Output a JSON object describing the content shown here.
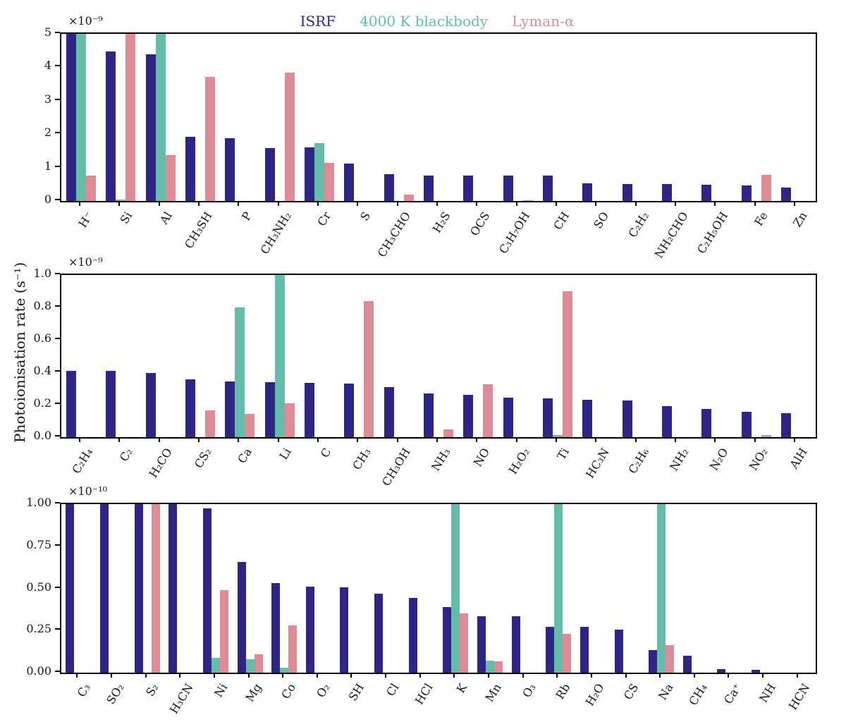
{
  "figure": {
    "ylabel": "Photoionisation rate (s⁻¹)"
  },
  "legend": {
    "items": [
      {
        "label": "ISRF",
        "color": "#2f2585"
      },
      {
        "label": "4000 K blackbody",
        "color": "#65bcab"
      },
      {
        "label": "Lyman-α",
        "color": "#de8b96"
      }
    ]
  },
  "chart_data": [
    {
      "type": "bar",
      "title": "",
      "offset_label": "×10⁻⁹",
      "ylim": [
        0,
        5
      ],
      "ytick_values": [
        0,
        1,
        2,
        3,
        4,
        5
      ],
      "ytick_labels": [
        "0",
        "1",
        "2",
        "3",
        "4",
        "5"
      ],
      "grid": false,
      "categories": [
        "H⁻",
        "Si",
        "Al",
        "CH₃SH",
        "P",
        "CH₃NH₂",
        "Cr",
        "S",
        "CH₃CHO",
        "H₂S",
        "OCS",
        "C₃H₇OH",
        "CH",
        "SO",
        "C₂H₂",
        "NH₂CHO",
        "C₂H₅OH",
        "Fe",
        "Zn"
      ],
      "series": [
        {
          "name": "ISRF",
          "values": [
            5.0,
            4.48,
            4.38,
            1.91,
            1.88,
            1.58,
            1.6,
            1.12,
            0.81,
            0.77,
            0.76,
            0.75,
            0.75,
            0.52,
            0.51,
            0.51,
            0.48,
            0.47,
            0.41
          ]
        },
        {
          "name": "4000 K blackbody",
          "values": [
            5.0,
            0.05,
            5.0,
            0,
            0,
            0,
            1.74,
            0,
            0,
            0,
            0,
            0,
            0,
            0,
            0,
            0,
            0,
            0,
            0
          ]
        },
        {
          "name": "Lyman-α",
          "values": [
            0.75,
            5.0,
            1.37,
            3.72,
            0,
            3.85,
            1.15,
            0,
            0.2,
            0,
            0,
            0.03,
            0,
            0,
            0,
            0,
            0,
            0.78,
            0
          ]
        }
      ],
      "note": "values in units of 1e-9 s^-1; bars at 5.0 are clipped at axis top"
    },
    {
      "type": "bar",
      "title": "",
      "offset_label": "×10⁻⁹",
      "ylim": [
        0,
        1.0
      ],
      "ytick_values": [
        0,
        0.2,
        0.4,
        0.6,
        0.8,
        1.0
      ],
      "ytick_labels": [
        "0.0",
        "0.2",
        "0.4",
        "0.6",
        "0.8",
        "1.0"
      ],
      "grid": false,
      "categories": [
        "C₂H₄",
        "C₂",
        "H₂CO",
        "CS₂",
        "Ca",
        "Li",
        "C",
        "CH₃",
        "CH₃OH",
        "NH₃",
        "NO",
        "H₂O₂",
        "Ti",
        "HC₃N",
        "C₂H₆",
        "NH₂",
        "N₂O",
        "NO₂",
        "AlH"
      ],
      "series": [
        {
          "name": "ISRF",
          "values": [
            0.41,
            0.41,
            0.395,
            0.355,
            0.345,
            0.34,
            0.335,
            0.33,
            0.31,
            0.27,
            0.26,
            0.245,
            0.24,
            0.23,
            0.225,
            0.19,
            0.175,
            0.155,
            0.15
          ]
        },
        {
          "name": "4000 K blackbody",
          "values": [
            0,
            0,
            0,
            0,
            0.8,
            1.0,
            0,
            0,
            0,
            0,
            0,
            0,
            0.012,
            0,
            0,
            0,
            0,
            0,
            0
          ]
        },
        {
          "name": "Lyman-α",
          "values": [
            0,
            0,
            0,
            0.165,
            0.145,
            0.21,
            0,
            0.84,
            0,
            0.05,
            0.325,
            0,
            0.9,
            0,
            0,
            0,
            0,
            0.015,
            0
          ]
        }
      ],
      "note": "values in units of 1e-9 s^-1; Li blackbody bar clipped at axis top"
    },
    {
      "type": "bar",
      "title": "",
      "offset_label": "×10⁻¹⁰",
      "ylim": [
        0,
        1.0
      ],
      "ytick_values": [
        0,
        0.25,
        0.5,
        0.75,
        1.0
      ],
      "ytick_labels": [
        "0.00",
        "0.25",
        "0.50",
        "0.75",
        "1.00"
      ],
      "grid": false,
      "categories": [
        "C₃",
        "SO₂",
        "S₂",
        "H₃CN",
        "Ni",
        "Mg",
        "Co",
        "O₂",
        "SH",
        "Cl",
        "HCl",
        "K",
        "Mn",
        "O₃",
        "Rb",
        "H₂O",
        "CS",
        "Na",
        "CH₄",
        "Ca⁺",
        "NH",
        "HCN"
      ],
      "series": [
        {
          "name": "ISRF",
          "values": [
            1.0,
            1.0,
            1.0,
            1.0,
            0.975,
            0.655,
            0.53,
            0.51,
            0.505,
            0.47,
            0.445,
            0.39,
            0.335,
            0.335,
            0.27,
            0.27,
            0.255,
            0.135,
            0.1,
            0.02,
            0.015,
            0
          ]
        },
        {
          "name": "4000 K blackbody",
          "values": [
            0,
            0,
            0,
            0,
            0.09,
            0.08,
            0.03,
            0,
            0,
            0,
            0,
            1.0,
            0.07,
            0,
            1.0,
            0,
            0,
            1.0,
            0,
            0,
            0,
            0
          ]
        },
        {
          "name": "Lyman-α",
          "values": [
            0,
            0,
            1.0,
            0,
            0.49,
            0.11,
            0.28,
            0,
            0,
            0,
            0,
            0.35,
            0.065,
            0,
            0.23,
            0,
            0,
            0.165,
            0,
            0,
            0,
            0
          ]
        }
      ],
      "note": "values in units of 1e-10 s^-1; bars at 1.0 are clipped at axis top"
    }
  ]
}
